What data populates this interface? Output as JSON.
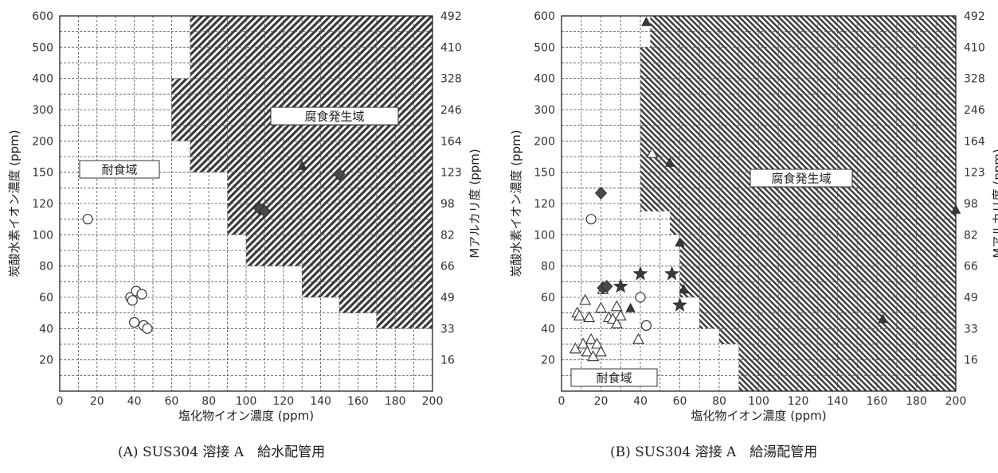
{
  "chart_data": [
    {
      "type": "scatter",
      "caption": "(A) SUS304 溶接 A　給水配管用",
      "xlabel": "塩化物イオン濃度 (ppm)",
      "ylabel": "炭酸水素イオン濃度 (ppm)",
      "y2label": "Mアルカリ度 (ppm)",
      "xlim": [
        0,
        200
      ],
      "x_ticks": [
        0,
        20,
        40,
        60,
        80,
        100,
        120,
        140,
        160,
        180,
        200
      ],
      "y_ticks": [
        "20",
        "40",
        "60",
        "80",
        "100",
        "120",
        "150",
        "200",
        "300",
        "400",
        "500",
        "600"
      ],
      "y2_ticks": [
        "16",
        "33",
        "49",
        "66",
        "82",
        "98",
        "123",
        "164",
        "246",
        "328",
        "410",
        "492"
      ],
      "grid": true,
      "region_labels": {
        "corrosion": "腐食発生域",
        "resistant": "耐食域"
      },
      "corrosion_region": [
        {
          "x": [
            70,
            200
          ],
          "y": [
            "500",
            "600"
          ]
        },
        {
          "x": [
            70,
            200
          ],
          "y": [
            "150",
            "500"
          ]
        },
        {
          "x": [
            60,
            200
          ],
          "y": [
            "200",
            "400"
          ]
        },
        {
          "x": [
            90,
            200
          ],
          "y": [
            "100",
            "150"
          ]
        },
        {
          "x": [
            100,
            200
          ],
          "y": [
            "80",
            "100"
          ]
        },
        {
          "x": [
            130,
            200
          ],
          "y": [
            "60",
            "80"
          ]
        },
        {
          "x": [
            150,
            200
          ],
          "y": [
            "50",
            "60"
          ]
        },
        {
          "x": [
            170,
            200
          ],
          "y": [
            "40",
            "50"
          ]
        },
        {
          "x": [
            80,
            200
          ],
          "y": [
            "600",
            "600"
          ]
        }
      ],
      "series": [
        {
          "marker": "circle-open",
          "points": [
            [
              15,
              "110"
            ],
            [
              38,
              "60"
            ],
            [
              39,
              "58"
            ],
            [
              41,
              "64"
            ],
            [
              44,
              "62"
            ],
            [
              40,
              "44"
            ],
            [
              45,
              "42"
            ],
            [
              47,
              "40"
            ]
          ]
        },
        {
          "marker": "diamond-filled",
          "points": [
            [
              107,
              "117"
            ],
            [
              110,
              "115"
            ],
            [
              150,
              "148"
            ]
          ]
        },
        {
          "marker": "triangle-filled",
          "points": [
            [
              130,
              "160"
            ]
          ]
        }
      ]
    },
    {
      "type": "scatter",
      "caption": "(B) SUS304 溶接 A　給湯配管用",
      "xlabel": "塩化物イオン濃度 (ppm)",
      "ylabel": "炭酸水素イオン濃度 (ppm)",
      "y2label": "Mアルカリ度 (ppm)",
      "xlim": [
        0,
        200
      ],
      "x_ticks": [
        0,
        20,
        40,
        60,
        80,
        100,
        120,
        140,
        160,
        180,
        200
      ],
      "y_ticks": [
        "20",
        "40",
        "60",
        "80",
        "100",
        "120",
        "150",
        "200",
        "300",
        "400",
        "500",
        "600"
      ],
      "y2_ticks": [
        "16",
        "33",
        "49",
        "66",
        "82",
        "98",
        "123",
        "164",
        "246",
        "328",
        "410",
        "492"
      ],
      "grid": true,
      "region_labels": {
        "corrosion": "腐食発生域",
        "resistant": "耐食域"
      },
      "corrosion_region": [
        {
          "x": [
            45,
            200
          ],
          "y": [
            "500",
            "600"
          ]
        },
        {
          "x": [
            40,
            200
          ],
          "y": [
            "150",
            "500"
          ]
        },
        {
          "x": [
            40,
            200
          ],
          "y": [
            "115",
            "150"
          ]
        },
        {
          "x": [
            55,
            200
          ],
          "y": [
            "100",
            "115"
          ]
        },
        {
          "x": [
            60,
            200
          ],
          "y": [
            "60",
            "100"
          ]
        },
        {
          "x": [
            70,
            200
          ],
          "y": [
            "40",
            "60"
          ]
        },
        {
          "x": [
            80,
            200
          ],
          "y": [
            "30",
            "40"
          ]
        },
        {
          "x": [
            90,
            200
          ],
          "y": [
            "0",
            "30"
          ]
        }
      ],
      "series": [
        {
          "marker": "triangle-open",
          "points": [
            [
              7,
              "27"
            ],
            [
              8,
              "50"
            ],
            [
              9,
              "48"
            ],
            [
              11,
              "30"
            ],
            [
              12,
              "58"
            ],
            [
              13,
              "25"
            ],
            [
              14,
              "47"
            ],
            [
              15,
              "33"
            ],
            [
              16,
              "22"
            ],
            [
              18,
              "30"
            ],
            [
              20,
              "25"
            ],
            [
              20,
              "53"
            ],
            [
              21,
              "65"
            ],
            [
              24,
              "47"
            ],
            [
              26,
              "46"
            ],
            [
              28,
              "43"
            ],
            [
              28,
              "54"
            ],
            [
              30,
              "48"
            ],
            [
              39,
              "33"
            ],
            [
              46,
              "180"
            ]
          ]
        },
        {
          "marker": "circle-open",
          "points": [
            [
              15,
              "110"
            ],
            [
              40,
              "60"
            ],
            [
              43,
              "42"
            ]
          ]
        },
        {
          "marker": "diamond-filled",
          "points": [
            [
              20,
              "130"
            ],
            [
              21,
              "66"
            ],
            [
              23,
              "67"
            ]
          ]
        },
        {
          "marker": "star-filled",
          "points": [
            [
              30,
              "67"
            ],
            [
              40,
              "75"
            ],
            [
              56,
              "75"
            ],
            [
              60,
              "55"
            ]
          ]
        },
        {
          "marker": "triangle-filled",
          "points": [
            [
              35,
              "53"
            ],
            [
              43,
              "580"
            ],
            [
              55,
              "165"
            ],
            [
              60,
              "95"
            ],
            [
              62,
              "65"
            ],
            [
              163,
              "46"
            ],
            [
              200,
              "116"
            ]
          ]
        }
      ]
    }
  ]
}
